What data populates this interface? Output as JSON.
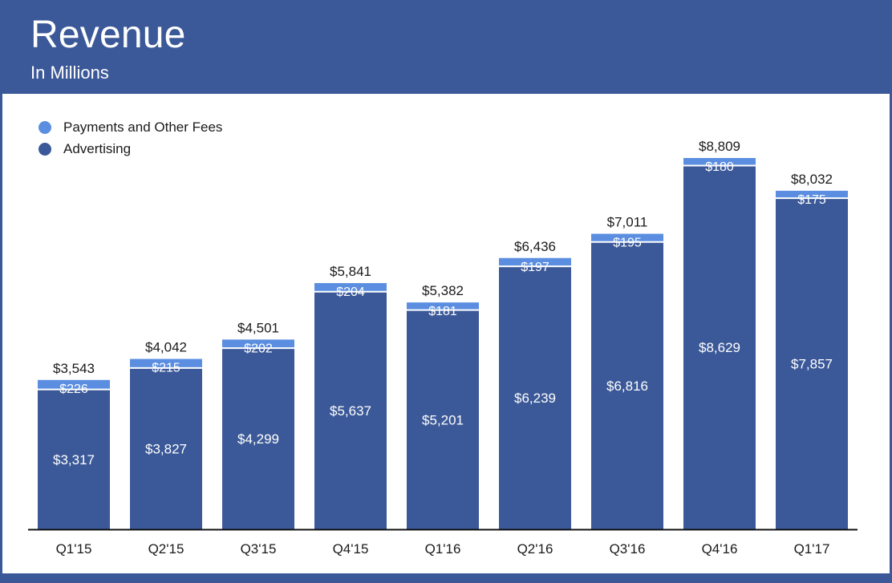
{
  "header": {
    "title": "Revenue",
    "subtitle": "In Millions"
  },
  "colors": {
    "background": "#3b5998",
    "advertising": "#3b5998",
    "payments": "#5b8ee0",
    "text": "#1a1a1a",
    "label_text": "#ffffff"
  },
  "chart_data": {
    "type": "bar",
    "stacked": true,
    "title": "Revenue",
    "subtitle": "In Millions",
    "categories": [
      "Q1'15",
      "Q2'15",
      "Q3'15",
      "Q4'15",
      "Q1'16",
      "Q2'16",
      "Q3'16",
      "Q4'16",
      "Q1'17"
    ],
    "series": [
      {
        "name": "Advertising",
        "color": "#3b5998",
        "values": [
          3317,
          3827,
          4299,
          5637,
          5201,
          6239,
          6816,
          8629,
          7857
        ],
        "labels": [
          "$3,317",
          "$3,827",
          "$4,299",
          "$5,637",
          "$5,201",
          "$6,239",
          "$6,816",
          "$8,629",
          "$7,857"
        ]
      },
      {
        "name": "Payments and Other Fees",
        "color": "#5b8ee0",
        "values": [
          226,
          215,
          202,
          204,
          181,
          197,
          195,
          180,
          175
        ],
        "labels": [
          "$226",
          "$215",
          "$202",
          "$204",
          "$181",
          "$197",
          "$195",
          "$180",
          "$175"
        ]
      }
    ],
    "totals": [
      3543,
      4042,
      4501,
      5841,
      5382,
      6436,
      7011,
      8809,
      8032
    ],
    "total_labels": [
      "$3,543",
      "$4,042",
      "$4,501",
      "$5,841",
      "$5,382",
      "$6,436",
      "$7,011",
      "$8,809",
      "$8,032"
    ],
    "legend": {
      "position": "top-left",
      "items": [
        "Payments and Other Fees",
        "Advertising"
      ]
    },
    "ylim": [
      0,
      9000
    ],
    "grid": false
  }
}
